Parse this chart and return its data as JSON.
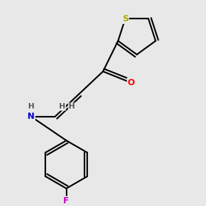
{
  "background_color": "#e8e8e8",
  "atom_colors": {
    "S": "#aaaa00",
    "O": "#ff0000",
    "N": "#0000cc",
    "F": "#cc00cc",
    "H": "#555555"
  },
  "bond_color": "#000000",
  "bond_lw": 1.6,
  "font_size_atom": 9,
  "font_size_h": 8,
  "xlim": [
    -2.5,
    2.5
  ],
  "ylim": [
    -4.0,
    3.0
  ]
}
